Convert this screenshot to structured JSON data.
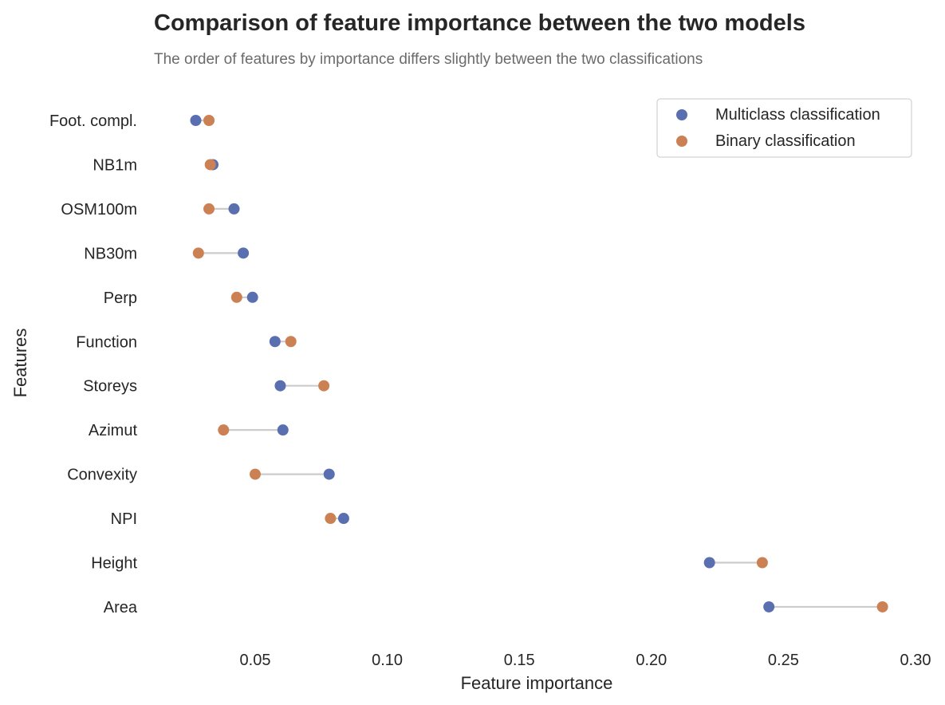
{
  "chart_data": {
    "type": "scatter",
    "variant": "dumbbell",
    "title": "Comparison of feature importance between the two models",
    "subtitle": "The order of features by importance differs slightly between the two classifications",
    "xlabel": "Feature importance",
    "ylabel": "Features",
    "xlim": [
      0.01,
      0.3
    ],
    "xticks": [
      0.05,
      0.1,
      0.15,
      0.2,
      0.25,
      0.3
    ],
    "xtick_labels": [
      "0.05",
      "0.10",
      "0.15",
      "0.20",
      "0.25",
      "0.30"
    ],
    "categories": [
      "Foot. compl.",
      "NB1m",
      "OSM100m",
      "NB30m",
      "Perp",
      "Function",
      "Storeys",
      "Azimut",
      "Convexity",
      "NPI",
      "Height",
      "Area"
    ],
    "series": [
      {
        "name": "Multiclass classification",
        "color": "#5a6fb0",
        "values": [
          0.0275,
          0.034,
          0.042,
          0.0455,
          0.049,
          0.0575,
          0.0595,
          0.0605,
          0.078,
          0.0835,
          0.222,
          0.2445
        ]
      },
      {
        "name": "Binary classification",
        "color": "#cc8154",
        "values": [
          0.0325,
          0.033,
          0.0325,
          0.0285,
          0.043,
          0.0635,
          0.076,
          0.038,
          0.05,
          0.0785,
          0.242,
          0.2875
        ]
      }
    ],
    "connector_color": "#cccccc",
    "grid": false,
    "legend_position": "top-right"
  }
}
